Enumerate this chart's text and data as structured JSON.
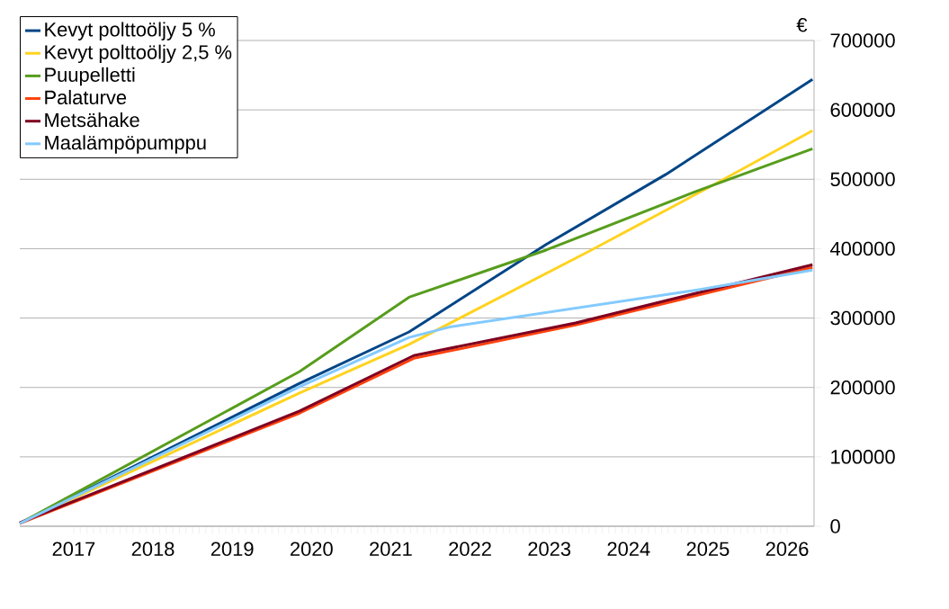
{
  "chart_data": {
    "type": "line",
    "ylabel": "€",
    "xlim": [
      2016.32,
      2026.34
    ],
    "ylim": [
      0,
      700000
    ],
    "xticks": [
      2017,
      2018,
      2019,
      2020,
      2021,
      2022,
      2023,
      2024,
      2025,
      2026
    ],
    "yticks": [
      0,
      100000,
      200000,
      300000,
      400000,
      500000,
      600000,
      700000
    ],
    "grid": "y",
    "legend": "top left",
    "marker": "none",
    "series": [
      {
        "name": "Kevyt polttoöljy 5 %",
        "color": "#004586",
        "x": [
          2016.32,
          2019.85,
          2021.23,
          2022.96,
          2024.47,
          2026.32
        ],
        "values": [
          4000,
          206000,
          280000,
          406000,
          507000,
          644000
        ]
      },
      {
        "name": "Kevyt polttoöljy 2,5 %",
        "color": "#ffd320",
        "x": [
          2016.32,
          2019.85,
          2021.23,
          2023.53,
          2025.04,
          2026.32
        ],
        "values": [
          4000,
          192000,
          262000,
          398000,
          490000,
          570000
        ]
      },
      {
        "name": "Puupelletti",
        "color": "#579d1c",
        "x": [
          2016.32,
          2019.85,
          2021.23,
          2022.96,
          2024.84,
          2026.32
        ],
        "values": [
          4000,
          223000,
          330000,
          398000,
          482000,
          544000
        ]
      },
      {
        "name": "Palaturve",
        "color": "#ff420e",
        "x": [
          2016.32,
          2019.85,
          2021.29,
          2023.33,
          2026.32
        ],
        "values": [
          4000,
          163000,
          242000,
          290000,
          373000
        ]
      },
      {
        "name": "Metsähake",
        "color": "#7e0021",
        "x": [
          2016.32,
          2019.85,
          2021.29,
          2023.33,
          2026.32
        ],
        "values": [
          5000,
          166000,
          246000,
          293000,
          377000
        ]
      },
      {
        "name": "Maalämpöpumppu",
        "color": "#83caff",
        "x": [
          2016.32,
          2019.85,
          2021.23,
          2021.74,
          2024.84,
          2026.32
        ],
        "values": [
          4000,
          201000,
          272000,
          287000,
          340000,
          369000
        ]
      }
    ]
  }
}
